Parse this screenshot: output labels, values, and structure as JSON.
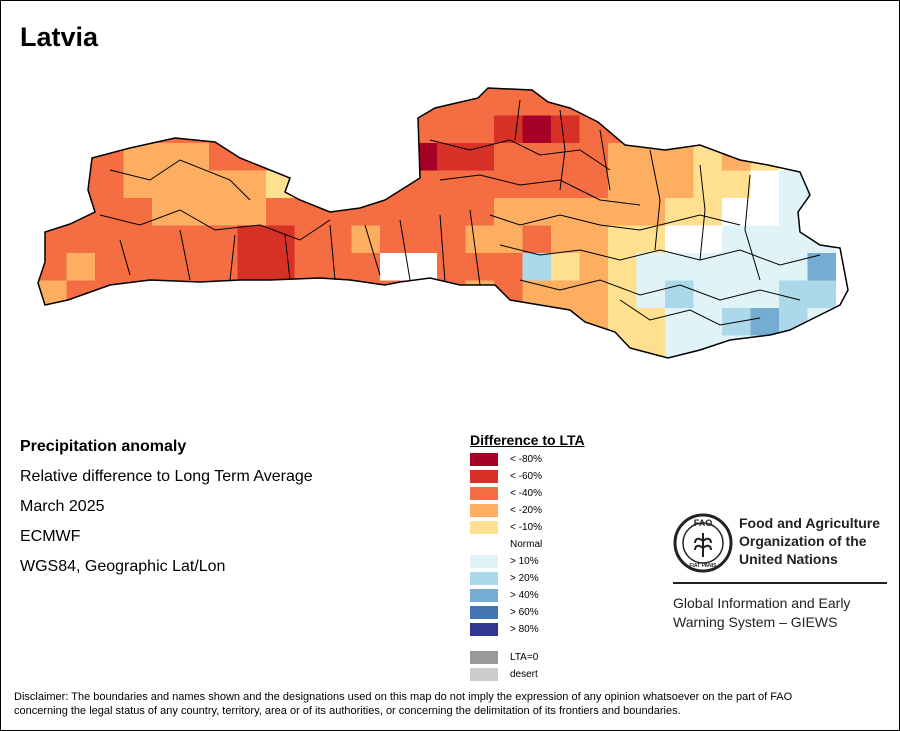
{
  "title": "Latvia",
  "info": {
    "line1": "Precipitation anomaly",
    "line2": "Relative difference to Long Term Average",
    "line3": "March 2025",
    "line4": "ECMWF",
    "line5": "WGS84, Geographic Lat/Lon"
  },
  "legend": {
    "title": "Difference to LTA",
    "items": [
      {
        "label": "< -80%",
        "color": "#a50026"
      },
      {
        "label": "< -60%",
        "color": "#d73027"
      },
      {
        "label": "< -40%",
        "color": "#f46d43"
      },
      {
        "label": "< -20%",
        "color": "#fdae61"
      },
      {
        "label": "< -10%",
        "color": "#fee090"
      },
      {
        "label": "Normal",
        "color": "#ffffff"
      },
      {
        "label": "> 10%",
        "color": "#e0f3f8"
      },
      {
        "label": "> 20%",
        "color": "#abd9e9"
      },
      {
        "label": "> 40%",
        "color": "#74add1"
      },
      {
        "label": "> 60%",
        "color": "#4575b4"
      },
      {
        "label": "> 80%",
        "color": "#313695"
      },
      {
        "label": "LTA=0",
        "color": "#999999"
      },
      {
        "label": "desert",
        "color": "#cccccc"
      }
    ]
  },
  "fao": {
    "name_line1": "Food and Agriculture",
    "name_line2": "Organization of the",
    "name_line3": "United Nations",
    "giews_line1": "Global Information and Early",
    "giews_line2": "Warning System – GIEWS",
    "logo_text": "FAO",
    "logo_ring_text": "FIAT PANIS"
  },
  "disclaimer": {
    "line1": "Disclaimer: The boundaries and names shown and the designations used on this map do not imply the expression of any opinion whatsoever on the part of FAO",
    "line2": "concerning the legal status of any country, territory, area or of its authorities, or concerning the delimitation of its frontiers and boundaries."
  },
  "map": {
    "cells": [
      [
        -3,
        -3,
        -3,
        -3,
        -3,
        -3,
        -3,
        -3,
        -3,
        -3,
        -3,
        -3,
        -3,
        -3,
        -3,
        -3,
        -3,
        -3,
        -3,
        -3,
        -3,
        -3,
        -3,
        -3,
        -3,
        -3,
        -3,
        -3,
        -3
      ],
      [
        -3,
        -3,
        -3,
        -3,
        -3,
        -3,
        -3,
        -3,
        -3,
        -3,
        -3,
        -3,
        -3,
        -3,
        -3,
        -3,
        -4,
        -5,
        -4,
        -3,
        -3,
        -3,
        -3,
        -3,
        -3,
        -3,
        -3,
        -3,
        -3
      ],
      [
        -3,
        -3,
        -3,
        -2,
        -2,
        -2,
        -3,
        -3,
        -3,
        -3,
        -3,
        -3,
        -3,
        -5,
        -4,
        -4,
        -3,
        -3,
        -3,
        -3,
        -2,
        -2,
        -2,
        -1,
        -2,
        -1,
        0,
        0,
        0
      ],
      [
        -3,
        -3,
        -3,
        -2,
        -2,
        -2,
        -2,
        -2,
        -1,
        1,
        -3,
        -3,
        -3,
        -3,
        -3,
        -3,
        -3,
        -3,
        -3,
        -3,
        -2,
        -2,
        -2,
        -1,
        -1,
        0,
        1,
        2,
        0
      ],
      [
        -3,
        -3,
        -3,
        -3,
        -2,
        -2,
        -2,
        -2,
        -3,
        -3,
        -3,
        -3,
        -3,
        -3,
        -3,
        -3,
        -2,
        -2,
        -2,
        -2,
        -2,
        -2,
        -1,
        -1,
        0,
        0,
        1,
        1,
        0
      ],
      [
        -3,
        -3,
        -3,
        -3,
        -3,
        -3,
        -3,
        -4,
        -4,
        -3,
        -3,
        -2,
        -3,
        -3,
        -3,
        -2,
        -2,
        -3,
        -2,
        -2,
        -1,
        -1,
        0,
        0,
        1,
        1,
        1,
        1,
        0
      ],
      [
        -3,
        -2,
        -3,
        -3,
        -3,
        -3,
        -3,
        -4,
        -4,
        -3,
        -3,
        -3,
        0,
        0,
        -3,
        -3,
        -3,
        2,
        -1,
        -2,
        -1,
        1,
        1,
        1,
        1,
        1,
        1,
        3,
        0
      ],
      [
        -2,
        -3,
        -3,
        -3,
        -3,
        -3,
        -3,
        -3,
        -3,
        -3,
        -3,
        -3,
        -3,
        -3,
        -3,
        -2,
        -3,
        -2,
        -2,
        -2,
        -1,
        1,
        2,
        1,
        1,
        1,
        2,
        2,
        0
      ],
      [
        -3,
        -3,
        -3,
        -3,
        -3,
        -3,
        -3,
        -3,
        -3,
        -3,
        -3,
        -3,
        -3,
        -3,
        -3,
        -3,
        -2,
        -2,
        -2,
        -2,
        -1,
        -1,
        1,
        1,
        2,
        3,
        2,
        1,
        0
      ],
      [
        -3,
        -3,
        -3,
        -3,
        -3,
        -3,
        -3,
        -3,
        -3,
        -3,
        -3,
        -3,
        -3,
        -3,
        -3,
        -3,
        -3,
        -3,
        -2,
        -1,
        -1,
        -1,
        1,
        1,
        1,
        1,
        1,
        0,
        0
      ]
    ]
  }
}
